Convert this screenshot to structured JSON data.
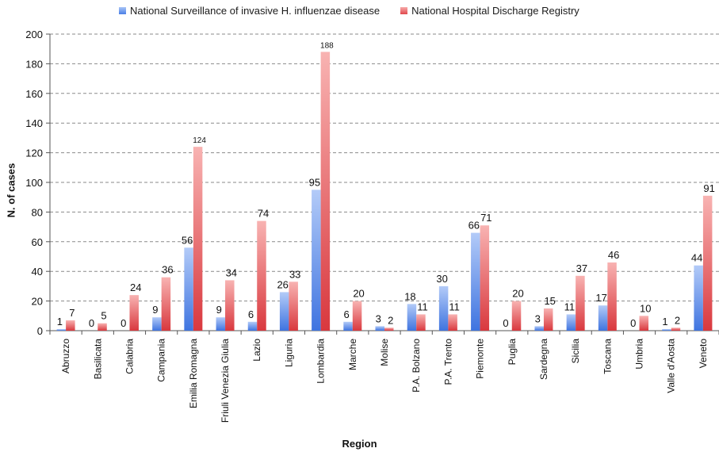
{
  "chart_data": {
    "type": "bar",
    "xlabel": "Region",
    "ylabel": "N. of cases",
    "ylim": [
      0,
      200
    ],
    "yticks": [
      0,
      20,
      40,
      60,
      80,
      100,
      120,
      140,
      160,
      180,
      200
    ],
    "grid": "horizontal dashed",
    "legend_position": "top",
    "categories": [
      "Abruzzo",
      "Basilicata",
      "Calabria",
      "Campania",
      "Emilia Romagna",
      "Friuli Venezia Giulia",
      "Lazio",
      "Liguria",
      "Lombardia",
      "Marche",
      "Molise",
      "P.A. Bolzano",
      "P.A. Trento",
      "Piemonte",
      "Puglia",
      "Sardegna",
      "Sicilia",
      "Toscana",
      "Umbria",
      "Valle d'Aosta",
      "Veneto"
    ],
    "series": [
      {
        "name": "National Surveillance of invasive H. influenzae disease",
        "color": "#5b8ff0",
        "values": [
          1,
          0,
          0,
          9,
          56,
          9,
          6,
          26,
          95,
          6,
          3,
          18,
          30,
          66,
          0,
          3,
          11,
          17,
          0,
          1,
          44
        ]
      },
      {
        "name": "National Hospital Discharge Registry",
        "color": "#e8585c",
        "values": [
          7,
          5,
          24,
          36,
          124,
          34,
          74,
          33,
          188,
          20,
          2,
          11,
          11,
          71,
          20,
          15,
          37,
          46,
          10,
          2,
          91
        ]
      }
    ]
  }
}
